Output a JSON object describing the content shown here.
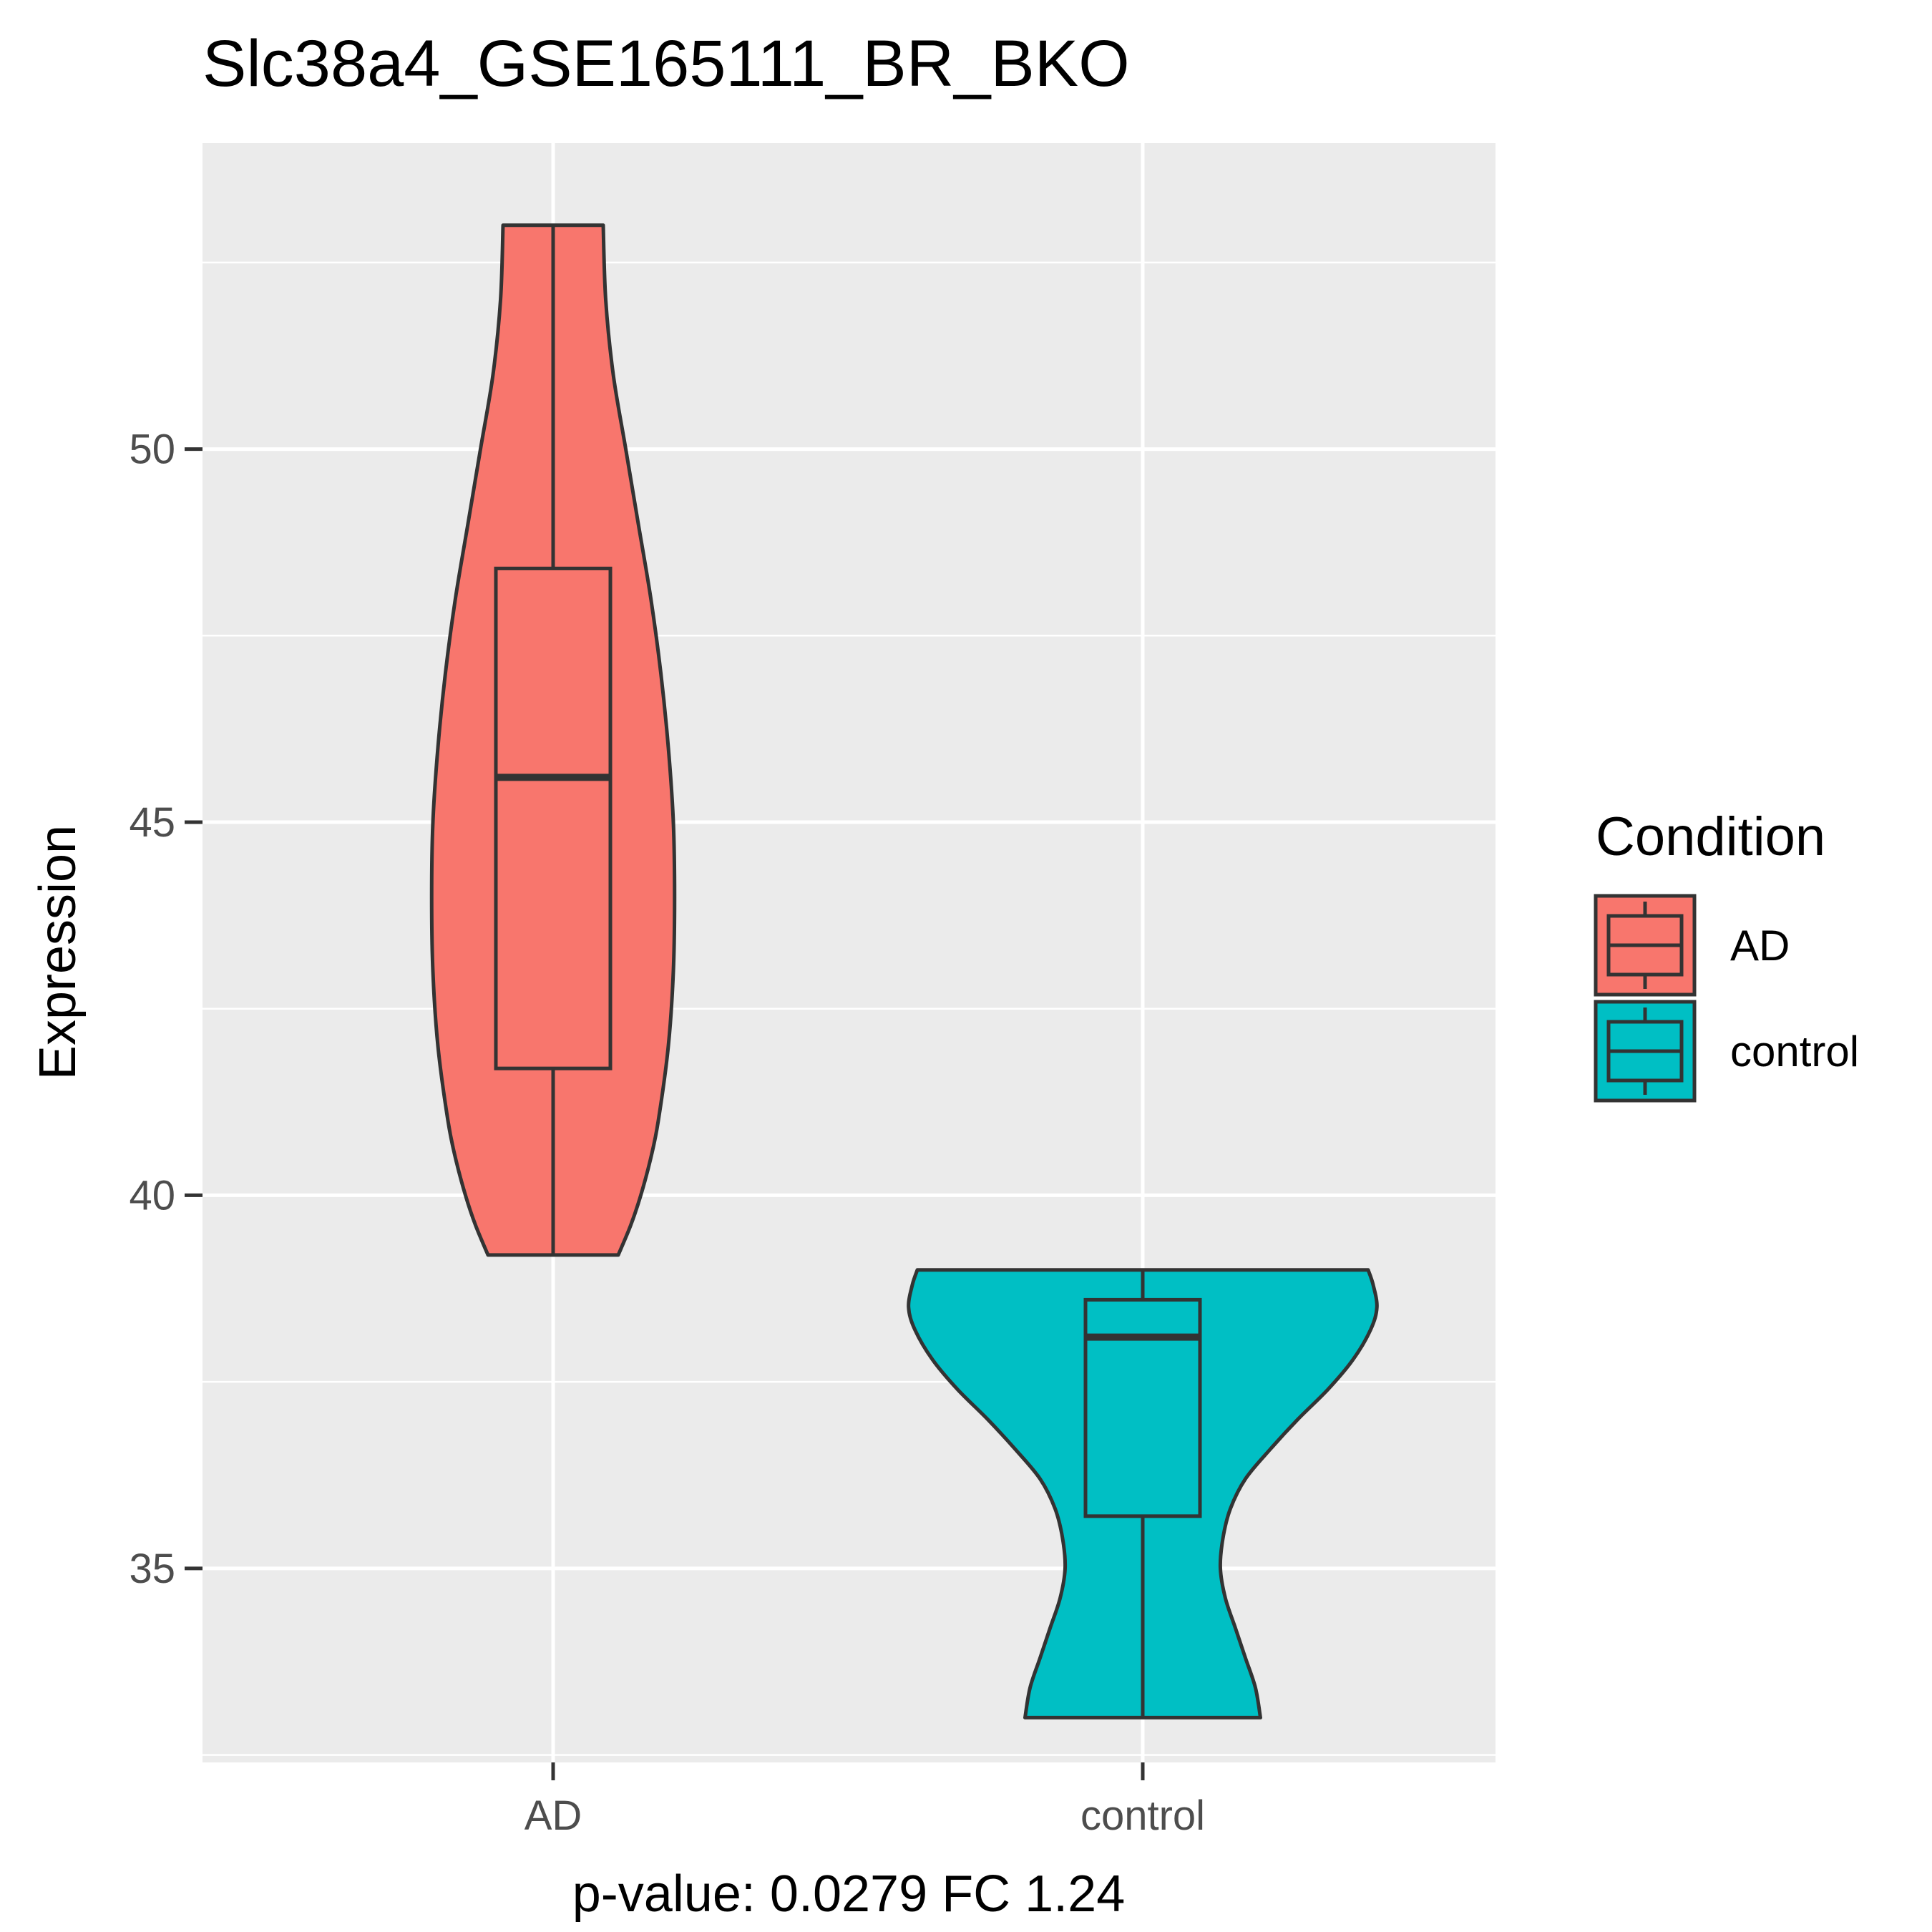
{
  "chart_data": {
    "type": "violin",
    "title": "Slc38a4_GSE165111_BR_BKO",
    "xlabel": "p-value: 0.0279 FC 1.24",
    "ylabel": "Expression",
    "ylim": [
      32.4,
      54.1
    ],
    "yticks": [
      35,
      40,
      45,
      50
    ],
    "ytick_labels": [
      "35",
      "40",
      "45",
      "50"
    ],
    "categories": [
      "AD",
      "control"
    ],
    "grid": true,
    "legend": {
      "title": "Condition",
      "position": "right",
      "entries": [
        "AD",
        "control"
      ]
    },
    "series": [
      {
        "name": "AD",
        "color": "#F8766D",
        "min": 39.2,
        "q1": 41.7,
        "median": 45.6,
        "q3": 48.4,
        "max": 53.0,
        "density_profile": [
          [
            39.2,
            0.26
          ],
          [
            39.6,
            0.31
          ],
          [
            40.0,
            0.35
          ],
          [
            40.5,
            0.39
          ],
          [
            41.0,
            0.42
          ],
          [
            42.0,
            0.46
          ],
          [
            43.0,
            0.48
          ],
          [
            44.0,
            0.485
          ],
          [
            45.0,
            0.48
          ],
          [
            46.0,
            0.46
          ],
          [
            47.0,
            0.43
          ],
          [
            48.0,
            0.39
          ],
          [
            49.0,
            0.34
          ],
          [
            50.0,
            0.29
          ],
          [
            51.0,
            0.24
          ],
          [
            52.0,
            0.21
          ],
          [
            53.0,
            0.2
          ]
        ]
      },
      {
        "name": "control",
        "color": "#00BFC4",
        "min": 33.0,
        "q1": 35.7,
        "median": 38.1,
        "q3": 38.6,
        "max": 39.0,
        "density_profile": [
          [
            33.0,
            0.47
          ],
          [
            33.4,
            0.45
          ],
          [
            33.8,
            0.41
          ],
          [
            34.2,
            0.37
          ],
          [
            34.6,
            0.33
          ],
          [
            35.0,
            0.31
          ],
          [
            35.4,
            0.32
          ],
          [
            35.8,
            0.35
          ],
          [
            36.2,
            0.41
          ],
          [
            36.6,
            0.51
          ],
          [
            37.0,
            0.62
          ],
          [
            37.4,
            0.74
          ],
          [
            37.8,
            0.84
          ],
          [
            38.2,
            0.91
          ],
          [
            38.5,
            0.935
          ],
          [
            38.8,
            0.92
          ],
          [
            39.0,
            0.9
          ]
        ]
      }
    ]
  }
}
